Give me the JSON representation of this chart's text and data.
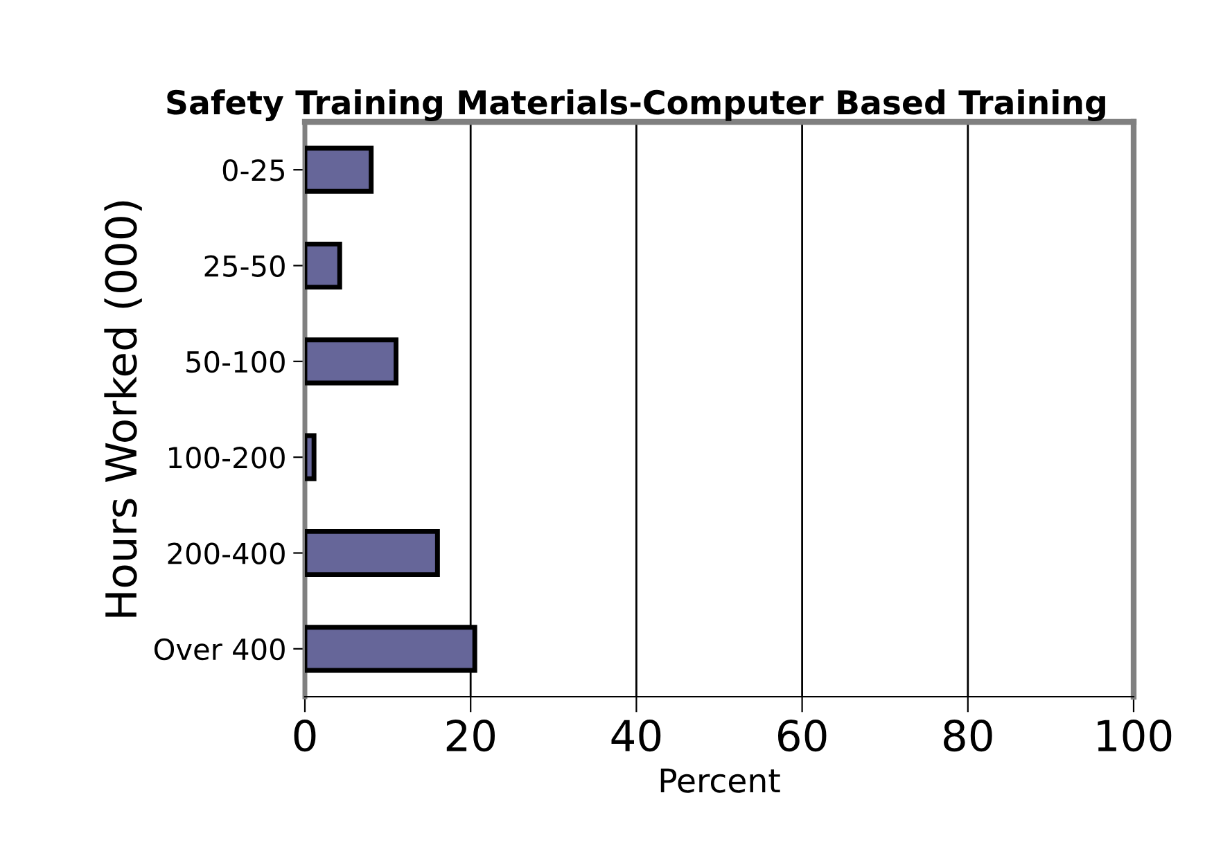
{
  "chart_data": {
    "type": "bar",
    "orientation": "horizontal",
    "title": "Safety Training Materials-Computer Based Training",
    "xlabel": "Percent",
    "ylabel": "Hours Worked (000)",
    "categories": [
      "0-25",
      "25-50",
      "50-100",
      "100-200",
      "200-400",
      "Over 400"
    ],
    "values": [
      8,
      4.2,
      11,
      1.1,
      16,
      20.5
    ],
    "color": "#666699",
    "xlim": [
      0,
      100
    ],
    "xticks": [
      0,
      20,
      40,
      60,
      80,
      100
    ],
    "grid": "x"
  }
}
